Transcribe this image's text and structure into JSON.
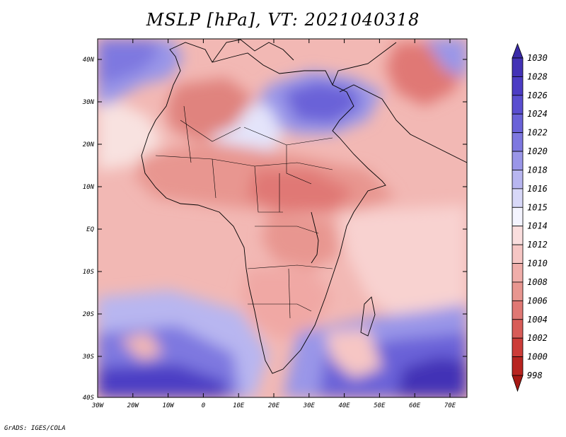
{
  "title": "MSLP [hPa], VT: 2021040318",
  "footer": "GrADS: IGES/COLA",
  "map": {
    "lat_labels": [
      "40N",
      "30N",
      "20N",
      "10N",
      "EQ",
      "10S",
      "20S",
      "30S",
      "40S"
    ],
    "lon_labels": [
      "30W",
      "20W",
      "10W",
      "0",
      "10E",
      "20E",
      "30E",
      "40E",
      "50E",
      "60E",
      "70E"
    ]
  },
  "colorbar": {
    "levels": [
      "1030",
      "1028",
      "1026",
      "1024",
      "1022",
      "1020",
      "1018",
      "1016",
      "1015",
      "1014",
      "1012",
      "1010",
      "1008",
      "1006",
      "1004",
      "1002",
      "1000",
      "998"
    ],
    "colors": [
      "#3a2aa8",
      "#4332b6",
      "#4c3cc4",
      "#5a4ed0",
      "#6a62d8",
      "#7e78e0",
      "#9a96e8",
      "#b8b6f0",
      "#d8d8f8",
      "#f4f4ff",
      "#fadede",
      "#f6c6c4",
      "#f0aeaa",
      "#e89690",
      "#e07874",
      "#d85c58",
      "#cc3c38",
      "#b82420",
      "#a61814"
    ]
  }
}
